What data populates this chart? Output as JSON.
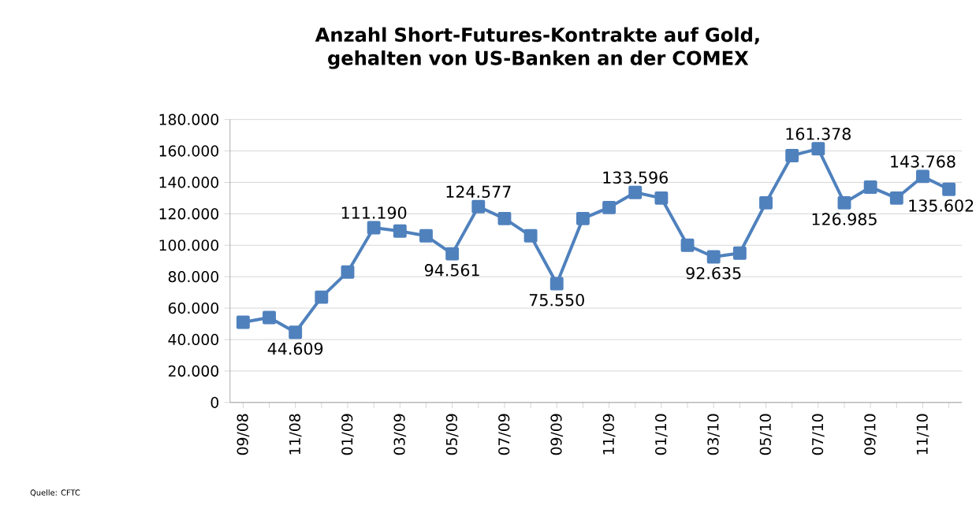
{
  "chart_data": {
    "type": "line",
    "title": "Anzahl Short-Futures-Kontrakte auf Gold, gehalten von US-Banken an der COMEX",
    "categories": [
      "09/08",
      null,
      "11/08",
      null,
      "01/09",
      null,
      "03/09",
      null,
      "05/09",
      null,
      "07/09",
      null,
      "09/09",
      null,
      "11/09",
      null,
      "01/10",
      null,
      "03/10",
      null,
      "05/10",
      null,
      "07/10",
      null,
      "09/10",
      null,
      "11/10",
      null
    ],
    "values": [
      51000,
      54000,
      44609,
      67000,
      83000,
      111190,
      109000,
      106000,
      94561,
      124577,
      117000,
      106000,
      75550,
      117000,
      124000,
      133596,
      130000,
      100000,
      92635,
      95000,
      127000,
      157000,
      161378,
      126985,
      137000,
      130000,
      143768,
      135602
    ],
    "value_labels": [
      null,
      null,
      "44.609",
      null,
      null,
      "111.190",
      null,
      null,
      "94.561",
      "124.577",
      null,
      null,
      "75.550",
      null,
      null,
      "133.596",
      null,
      null,
      "92.635",
      null,
      null,
      null,
      "161.378",
      "126.985",
      null,
      null,
      "143.768",
      "135.602"
    ],
    "color": "#4f81bd",
    "marker": "square",
    "line_style": "solid",
    "grid": "y",
    "ylim": [
      0,
      180000
    ],
    "yticks": [
      {
        "value": 0,
        "label": "0"
      },
      {
        "value": 20000,
        "label": "20.000"
      },
      {
        "value": 40000,
        "label": "40.000"
      },
      {
        "value": 60000,
        "label": "60.000"
      },
      {
        "value": 80000,
        "label": "80.000"
      },
      {
        "value": 100000,
        "label": "100.000"
      },
      {
        "value": 120000,
        "label": "120.000"
      },
      {
        "value": 140000,
        "label": "140.000"
      },
      {
        "value": 160000,
        "label": "160.000"
      },
      {
        "value": 180000,
        "label": "180.000"
      }
    ],
    "annotations": [
      "Quelle: CFTC"
    ]
  }
}
